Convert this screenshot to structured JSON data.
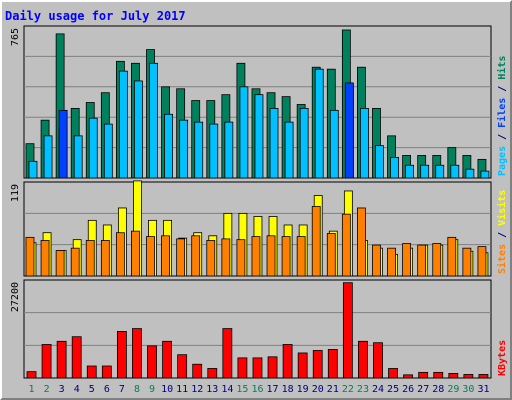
{
  "colors": {
    "background": "#c0c0c0",
    "plot": "#c0c0c0",
    "title": "#0000ff",
    "hits": "#00805c",
    "files": "#00c0ff",
    "pages": "#0040ff",
    "visits": "#ffff00",
    "sites": "#ff8000",
    "kbytes": "#ff0000",
    "weekend": "#00805c",
    "weekday": "#000080"
  },
  "chart_data": {
    "type": "bar",
    "title": "Daily usage for July 2017",
    "categories": [
      "1",
      "2",
      "3",
      "4",
      "5",
      "6",
      "7",
      "8",
      "9",
      "10",
      "11",
      "12",
      "13",
      "14",
      "15",
      "16",
      "17",
      "18",
      "19",
      "20",
      "21",
      "22",
      "23",
      "24",
      "25",
      "26",
      "27",
      "28",
      "29",
      "30",
      "31"
    ],
    "weekend_days": [
      "1",
      "2",
      "8",
      "9",
      "15",
      "16",
      "22",
      "23",
      "29",
      "30"
    ],
    "panels": [
      {
        "name": "top",
        "ymax_label": "765",
        "ylim": [
          0,
          765
        ],
        "legend": [
          {
            "text": "Pages",
            "color": "#00c0ff"
          },
          {
            "text": " / ",
            "color": "#000080"
          },
          {
            "text": "Files",
            "color": "#0040ff"
          },
          {
            "text": " / ",
            "color": "#000080"
          },
          {
            "text": "Hits",
            "color": "#00805c"
          }
        ],
        "series": [
          {
            "name": "Hits",
            "color": "#00805c",
            "values": [
              175,
              295,
              735,
              355,
              385,
              435,
              595,
              585,
              655,
              465,
              455,
              395,
              395,
              425,
              585,
              455,
              435,
              415,
              375,
              565,
              555,
              755,
              565,
              355,
              215,
              115,
              115,
              115,
              155,
              115,
              95
            ]
          },
          {
            "name": "Files",
            "color": "#00c0ff",
            "values": [
              85,
              215,
              255,
              215,
              305,
              275,
              545,
              495,
              585,
              325,
              295,
              285,
              275,
              285,
              465,
              425,
              355,
              285,
              355,
              555,
              345,
              475,
              355,
              165,
              105,
              65,
              65,
              65,
              65,
              45,
              35
            ]
          },
          {
            "name": "Pages",
            "color": "#0040ff",
            "values": [
              0,
              0,
              345,
              0,
              0,
              0,
              0,
              0,
              0,
              0,
              0,
              0,
              0,
              0,
              0,
              0,
              0,
              0,
              0,
              0,
              0,
              485,
              0,
              0,
              0,
              0,
              0,
              0,
              0,
              0,
              0
            ]
          }
        ]
      },
      {
        "name": "middle",
        "ymax_label": "119",
        "ylim": [
          0,
          119
        ],
        "legend": [
          {
            "text": "Sites",
            "color": "#ff8000"
          },
          {
            "text": " / ",
            "color": "#000080"
          },
          {
            "text": "Visits",
            "color": "#ffff00"
          }
        ],
        "series": [
          {
            "name": "Visits",
            "color": "#ffff00",
            "values": [
              43,
              56,
              33,
              47,
              72,
              66,
              88,
              123,
              72,
              72,
              49,
              56,
              52,
              81,
              81,
              77,
              77,
              66,
              66,
              104,
              58,
              110,
              46,
              36,
              28,
              36,
              40,
              40,
              47,
              32,
              30
            ]
          },
          {
            "name": "Sites",
            "color": "#ff8000",
            "values": [
              50,
              46,
              33,
              36,
              46,
              46,
              56,
              58,
              51,
              52,
              48,
              52,
              46,
              48,
              47,
              51,
              52,
              51,
              51,
              90,
              55,
              80,
              88,
              40,
              36,
              42,
              40,
              42,
              50,
              36,
              38
            ]
          }
        ]
      },
      {
        "name": "bottom",
        "ymax_label": "27200",
        "ylim": [
          0,
          27200
        ],
        "legend": [
          {
            "text": "KBytes",
            "color": "#ff0000"
          }
        ],
        "series": [
          {
            "name": "KBytes",
            "color": "#ff0000",
            "values": [
              1800,
              9500,
              10400,
              11700,
              3400,
              3400,
              13200,
              14000,
              9100,
              10400,
              6600,
              3900,
              2700,
              14000,
              5700,
              5700,
              6000,
              9500,
              7100,
              7800,
              8100,
              27000,
              10400,
              10000,
              2700,
              900,
              1600,
              1600,
              1300,
              1000,
              1000
            ]
          }
        ]
      }
    ]
  }
}
